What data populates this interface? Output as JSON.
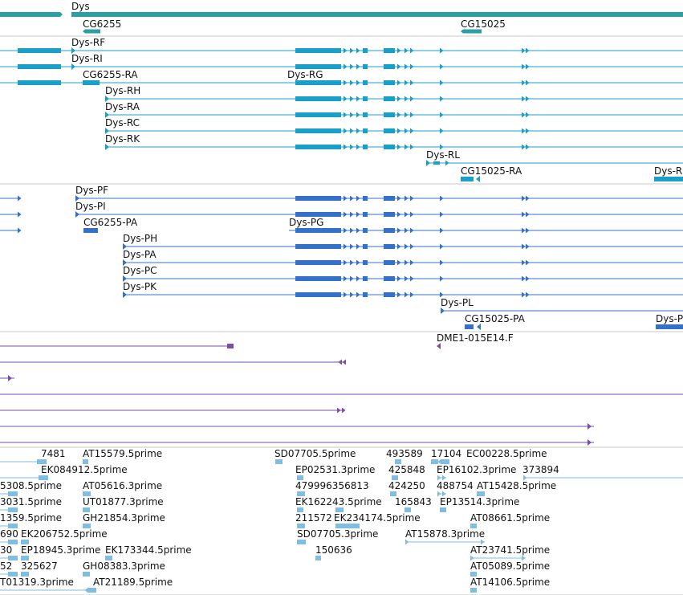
{
  "colors": {
    "gene": "#2aa0a4",
    "transcript": "#1aa0c8",
    "protein": "#3471c8",
    "read": "#7a4fa8",
    "est": "#80bde0",
    "divider": "#c8c8c8"
  },
  "gene_track": {
    "labels": [
      "Dys",
      "CG6255",
      "CG15025"
    ]
  },
  "transcript_track": {
    "labels": [
      "Dys-RF",
      "Dys-RI",
      "CG6255-RA",
      "Dys-RG",
      "Dys-RH",
      "Dys-RA",
      "Dys-RC",
      "Dys-RK",
      "Dys-RL",
      "CG15025-RA",
      "Dys-R"
    ]
  },
  "protein_track": {
    "labels": [
      "Dys-PF",
      "Dys-PI",
      "CG6255-PA",
      "Dys-PG",
      "Dys-PH",
      "Dys-PA",
      "Dys-PC",
      "Dys-PK",
      "Dys-PL",
      "CG15025-PA",
      "Dys-P"
    ]
  },
  "read_track": {
    "labels": [
      "DME1-015E14.F"
    ]
  },
  "est_track": {
    "labels": [
      "7481",
      "AT15579.5prime",
      "SD07705.5prime",
      "493589",
      "17104",
      "EC00228.5prime",
      "EK084912.5prime",
      "EP02531.3prime",
      "425848",
      "EP16102.3prime",
      "373894",
      "5308.5prime",
      "AT05616.3prime",
      "479996356813",
      "424250",
      "488754",
      "AT15428.5prime",
      "3031.5prime",
      "UT01877.3prime",
      "EK162243.5prime",
      "165843",
      "EP13514.3prime",
      "1359.5prime",
      "GH21854.3prime",
      "211572",
      "EK234174.5prime",
      "AT08661.5prime",
      "690",
      "EK206752.5prime",
      "SD07705.3prime",
      "AT15878.3prime",
      "30",
      "EP18945.3prime",
      "EK173344.5prime",
      "150636",
      "AT23741.5prime",
      "52",
      "325627",
      "GH08383.3prime",
      "AT05089.5prime",
      "T01319.3prime",
      "AT21189.5prime",
      "AT14106.5prime"
    ]
  }
}
